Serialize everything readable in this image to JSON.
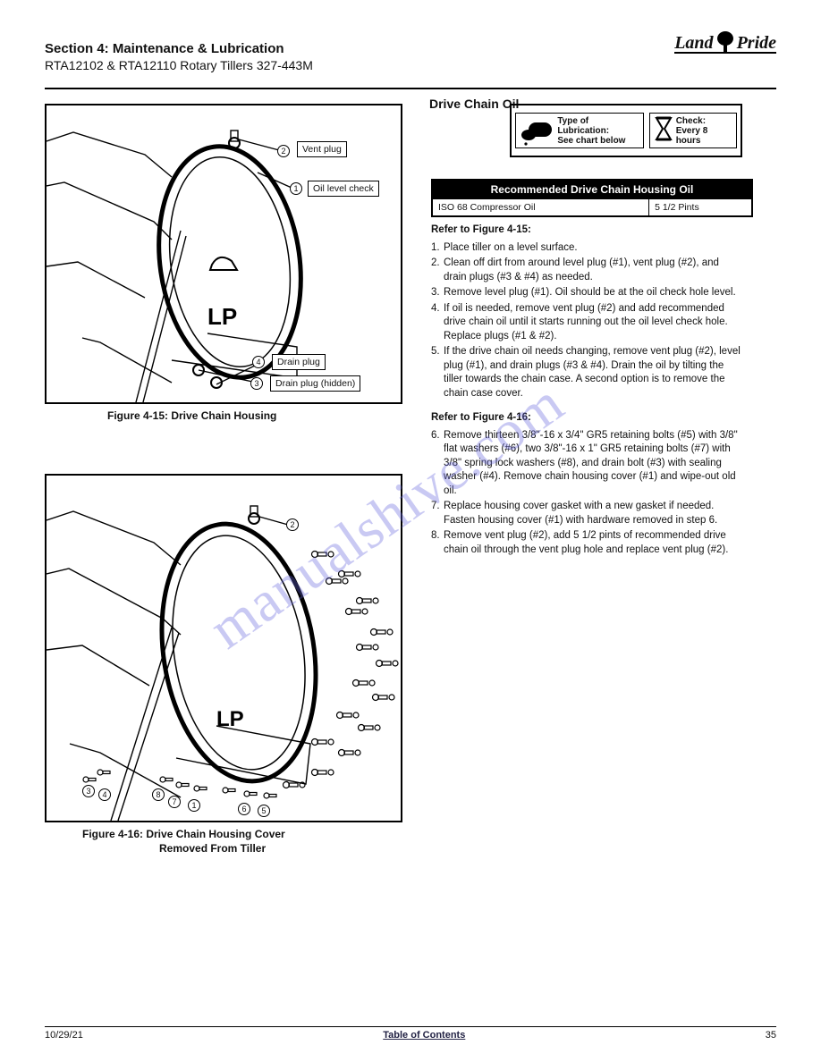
{
  "header": {
    "section": "Section 4: Maintenance & Lubrication",
    "models": "RTA12102 & RTA12110 Rotary Tillers 327-443M",
    "brand_left": "Land",
    "brand_right": "Pride"
  },
  "spec_box": {
    "type_label": "Type of Lubrication:",
    "type_value": "See chart below",
    "interval_label": "Check:",
    "interval_value": "Every 8 hours"
  },
  "oil_table": {
    "title": "Recommended Drive Chain Housing Oil",
    "row": {
      "left": "ISO 68 Compressor Oil",
      "right": "5 1/2 Pints"
    }
  },
  "figure15": {
    "caption": "Figure 4-15: Drive Chain Housing",
    "labels": {
      "vent_plug": "Vent plug",
      "oil_level_check": "Oil level check",
      "drain_plug": "Drain plug",
      "drain_plug_hidden": "Drain plug (hidden)"
    },
    "circle_numbers": {
      "c1": "1",
      "c2": "2",
      "c3": "3",
      "c4": "4"
    }
  },
  "figure16": {
    "caption_line1": "Figure 4-16: Drive Chain Housing Cover",
    "caption_line2": "Removed From Tiller",
    "circle_numbers": {
      "c1": "1",
      "c2": "2",
      "c3": "3",
      "c4": "4",
      "c5": "5",
      "c6": "6",
      "c7": "7",
      "c8": "8"
    }
  },
  "instructions_top": {
    "heading_ref": "Refer to Figure 4-15:",
    "steps": [
      "Place tiller on a level surface.",
      "Clean off dirt from around level plug (#1), vent plug (#2), and drain plugs (#3 & #4) as needed.",
      "Remove level plug (#1). Oil should be at the oil check hole level.",
      "If oil is needed, remove vent plug (#2) and add recommended drive chain oil until it starts running out the oil level check hole. Replace plugs (#1 & #2).",
      "If the drive chain oil needs changing, remove vent plug (#2), level plug (#1), and drain plugs (#3 & #4). Drain the oil by tilting the tiller towards the chain case. A second option is to remove the chain case cover."
    ]
  },
  "instructions_mid": {
    "heading_ref": "Refer to Figure 4-16:",
    "steps": [
      "Remove thirteen 3/8\"-16 x 3/4\" GR5 retaining bolts (#5) with 3/8\" flat washers (#6), two 3/8\"-16 x 1\" GR5 retaining bolts (#7) with 3/8\" spring lock washers (#8), and drain bolt (#3) with sealing washer (#4). Remove chain housing cover (#1) and wipe-out old oil.",
      "Replace housing cover gasket with a new gasket if needed. Fasten housing cover (#1) with hardware removed in step 6.",
      "Remove vent plug (#2), add 5 1/2 pints of recommended drive chain oil through the vent plug hole and replace vent plug (#2)."
    ],
    "step_start": 6
  },
  "footer": {
    "date": "10/29/21",
    "center": "Table of Contents",
    "page": "35"
  },
  "watermark_text": "manualshive.com",
  "heading_top_right": "Drive Chain Oil",
  "colors": {
    "watermark": "rgba(100,100,220,0.35)"
  }
}
